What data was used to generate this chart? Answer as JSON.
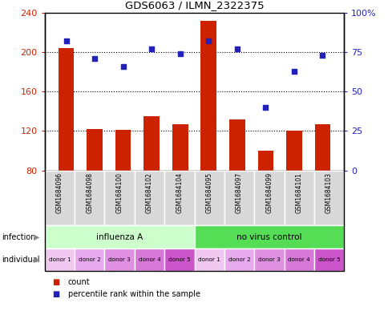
{
  "title": "GDS6063 / ILMN_2322375",
  "samples": [
    "GSM1684096",
    "GSM1684098",
    "GSM1684100",
    "GSM1684102",
    "GSM1684104",
    "GSM1684095",
    "GSM1684097",
    "GSM1684099",
    "GSM1684101",
    "GSM1684103"
  ],
  "counts": [
    204,
    122,
    121,
    135,
    127,
    232,
    132,
    100,
    120,
    127
  ],
  "percentile_ranks": [
    82,
    71,
    66,
    77,
    74,
    82,
    77,
    40,
    63,
    73
  ],
  "ylim_left": [
    80,
    240
  ],
  "ylim_right": [
    0,
    100
  ],
  "yticks_left": [
    80,
    120,
    160,
    200,
    240
  ],
  "yticks_right": [
    0,
    25,
    50,
    75,
    100
  ],
  "bar_color": "#cc2200",
  "dot_color": "#2222bb",
  "background_plot": "#ffffff",
  "infection_groups": [
    {
      "label": "influenza A",
      "start": 0,
      "end": 4,
      "color": "#ccffcc"
    },
    {
      "label": "no virus control",
      "start": 5,
      "end": 9,
      "color": "#55dd55"
    }
  ],
  "individual_labels": [
    "donor 1",
    "donor 2",
    "donor 3",
    "donor 4",
    "donor 5",
    "donor 1",
    "donor 2",
    "donor 3",
    "donor 4",
    "donor 5"
  ],
  "individual_colors": [
    "#f0c8f0",
    "#e8aaee",
    "#e090e0",
    "#d878d8",
    "#cc55cc",
    "#f0c8f0",
    "#e8aaee",
    "#e090e0",
    "#d878d8",
    "#cc55cc"
  ],
  "legend_count_label": "count",
  "legend_pct_label": "percentile rank within the sample",
  "infection_row_label": "infection",
  "individual_row_label": "individual",
  "axis_bg_color": "#d8d8d8",
  "fig_border_color": "#888888"
}
